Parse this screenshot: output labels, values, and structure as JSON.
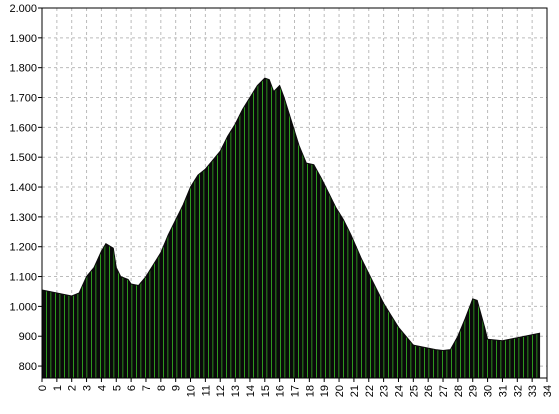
{
  "chart_data": {
    "type": "area",
    "x": [
      0,
      0.5,
      1,
      1.5,
      2,
      2.5,
      3,
      3.5,
      4,
      4.3,
      4.8,
      5,
      5.3,
      5.8,
      6,
      6.5,
      7,
      7.5,
      8,
      8.5,
      9,
      9.5,
      10,
      10.5,
      11,
      11.5,
      12,
      12.5,
      13,
      13.5,
      14,
      14.5,
      15,
      15.3,
      15.6,
      16,
      16.3,
      16.8,
      17.3,
      17.8,
      18.3,
      18.8,
      19.3,
      19.8,
      20.3,
      20.8,
      21.5,
      22,
      22.5,
      23,
      23.5,
      24,
      24.5,
      25,
      25.5,
      26,
      26.5,
      27,
      27.5,
      28,
      28.5,
      29,
      29.3,
      29.8,
      30,
      31,
      31.5,
      32,
      32.5,
      33,
      33.5
    ],
    "values": [
      1055,
      1050,
      1045,
      1040,
      1035,
      1045,
      1100,
      1130,
      1185,
      1210,
      1195,
      1130,
      1100,
      1090,
      1075,
      1070,
      1100,
      1140,
      1180,
      1240,
      1290,
      1340,
      1400,
      1440,
      1460,
      1490,
      1520,
      1570,
      1610,
      1660,
      1700,
      1740,
      1765,
      1760,
      1720,
      1740,
      1700,
      1620,
      1540,
      1480,
      1475,
      1430,
      1380,
      1330,
      1290,
      1240,
      1160,
      1110,
      1060,
      1010,
      970,
      930,
      900,
      870,
      865,
      860,
      855,
      852,
      855,
      900,
      960,
      1025,
      1020,
      930,
      890,
      885,
      890,
      895,
      900,
      905,
      910
    ],
    "color": "#0a0a0a",
    "stripe_color": "#2e9a1e",
    "xlim": [
      0,
      34
    ],
    "ylim": [
      760,
      2000
    ],
    "xticks": [
      0,
      1,
      2,
      3,
      4,
      5,
      6,
      7,
      8,
      9,
      10,
      11,
      12,
      13,
      14,
      15,
      16,
      17,
      18,
      19,
      20,
      21,
      22,
      23,
      24,
      25,
      26,
      27,
      28,
      29,
      30,
      31,
      32,
      33,
      34
    ],
    "yticks": [
      800,
      900,
      {
        "value": 1000,
        "label": "1.000"
      },
      {
        "value": 1100,
        "label": "1.100"
      },
      {
        "value": 1200,
        "label": "1.200"
      },
      {
        "value": 1300,
        "label": "1.300"
      },
      {
        "value": 1400,
        "label": "1.400"
      },
      {
        "value": 1500,
        "label": "1.500"
      },
      {
        "value": 1600,
        "label": "1.600"
      },
      {
        "value": 1700,
        "label": "1.700"
      },
      {
        "value": 1800,
        "label": "1.800"
      },
      {
        "value": 1900,
        "label": "1.900"
      },
      {
        "value": 2000,
        "label": "2.000"
      }
    ],
    "grid": true
  }
}
